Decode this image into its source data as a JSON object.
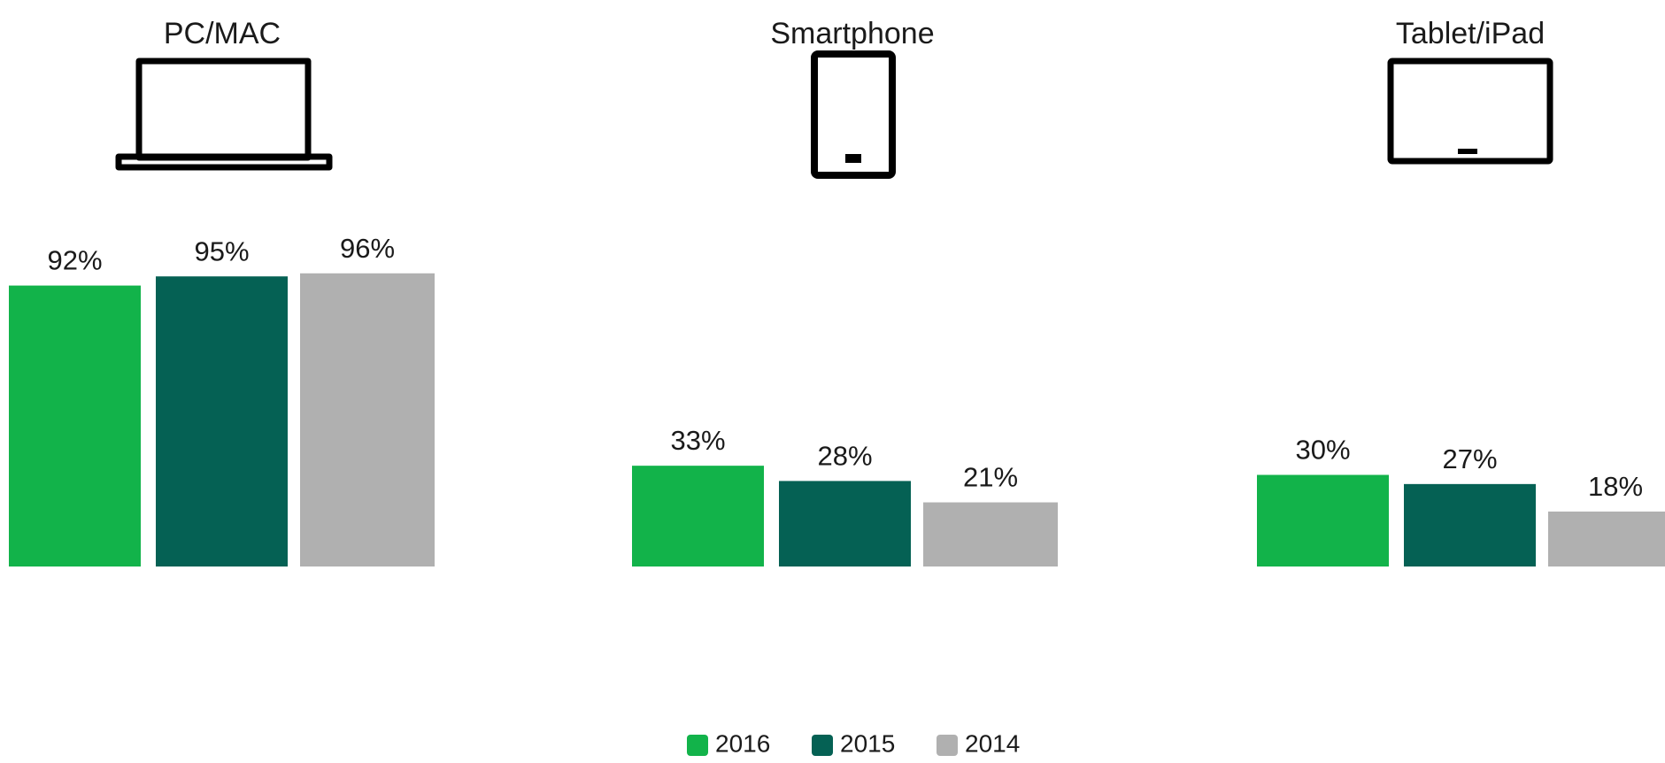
{
  "chart_data": {
    "type": "bar",
    "categories": [
      "PC/MAC",
      "Smartphone",
      "Tablet/iPad"
    ],
    "category_icons": [
      "laptop-icon",
      "smartphone-icon",
      "tablet-icon"
    ],
    "series": [
      {
        "name": "2016",
        "color": "#12b34a",
        "values": [
          92,
          33,
          30
        ],
        "labels": [
          "92%",
          "33%",
          "30%"
        ]
      },
      {
        "name": "2015",
        "color": "#056154",
        "values": [
          95,
          28,
          27
        ],
        "labels": [
          "95%",
          "28%",
          "27%"
        ]
      },
      {
        "name": "2014",
        "color": "#b0b0b0",
        "values": [
          96,
          21,
          18
        ],
        "labels": [
          "96%",
          "21%",
          "18%"
        ]
      }
    ],
    "ylim": [
      0,
      100
    ],
    "grid": false,
    "legend": "bottom-center"
  }
}
